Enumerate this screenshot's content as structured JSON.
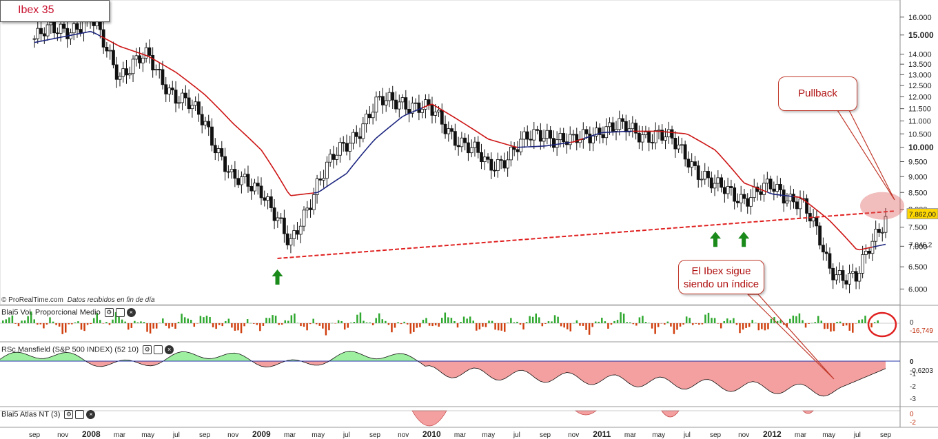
{
  "title": "Ibex 35",
  "copyright": {
    "brand": "© ProRealTime.com",
    "note": "Datos recibidos en fin de día"
  },
  "callouts": {
    "pullback": "Pullback",
    "note_line1": "El Ibex sigue",
    "note_line2": "siendo un índice"
  },
  "colors": {
    "ma_red": "#cc1111",
    "ma_blue": "#1a237e",
    "trendline": "#e02020",
    "arrow": "#1a8a1a",
    "vol_pos": "#2fa82f",
    "vol_neg": "#d04010",
    "rsc_pos": "#9ef0a0",
    "rsc_neg": "#f4a0a0",
    "price_marker": "#ffd700"
  },
  "price_axis": {
    "ticks": [
      "16.000",
      "15.000",
      "14.000",
      "13.500",
      "13.000",
      "12.500",
      "12.000",
      "11.500",
      "11.000",
      "10.500",
      "10.000",
      "9.500",
      "9.000",
      "8.500",
      "8.000",
      "7.500",
      "7.000",
      "6.500",
      "6.000"
    ],
    "last_price": "7.862,00",
    "ma_value": "7.046,2"
  },
  "x_axis": {
    "labels": [
      "sep",
      "nov",
      "2008",
      "mar",
      "may",
      "jul",
      "sep",
      "nov",
      "2009",
      "mar",
      "may",
      "jul",
      "sep",
      "nov",
      "2010",
      "mar",
      "may",
      "jul",
      "sep",
      "nov",
      "2011",
      "mar",
      "may",
      "jul",
      "sep",
      "nov",
      "2012",
      "mar",
      "may",
      "jul",
      "sep"
    ],
    "bold_labels": [
      "2008",
      "2009",
      "2010",
      "2011",
      "2012"
    ]
  },
  "panels": {
    "volume": {
      "label": "Blai5 Vol. Proporcional Medio",
      "zero": "0",
      "value": "-16,749"
    },
    "rsc": {
      "label": "RSc Mansfield (S&P 500 INDEX) (52 10)",
      "ticks": [
        "0",
        "-1",
        "-2",
        "-3"
      ],
      "value": "-0,6203"
    },
    "atlas": {
      "label": "Blai5 Atlas NT (3)",
      "ticks": [
        "0",
        "-2"
      ]
    }
  },
  "chart_data": {
    "type": "line",
    "title": "Ibex 35",
    "scale": "log",
    "ylim": [
      5700,
      16600
    ],
    "x": [
      "2007-09",
      "2007-11",
      "2008-01",
      "2008-03",
      "2008-05",
      "2008-07",
      "2008-09",
      "2008-11",
      "2009-01",
      "2009-03",
      "2009-05",
      "2009-07",
      "2009-09",
      "2009-11",
      "2010-01",
      "2010-03",
      "2010-05",
      "2010-07",
      "2010-09",
      "2010-11",
      "2011-01",
      "2011-03",
      "2011-05",
      "2011-07",
      "2011-09",
      "2011-11",
      "2012-01",
      "2012-03",
      "2012-05",
      "2012-07",
      "2012-09"
    ],
    "series": [
      {
        "values": [
          14800,
          15400,
          15700,
          13100,
          13800,
          12000,
          11000,
          8800,
          8700,
          6900,
          8900,
          10100,
          11600,
          11900,
          11300,
          10300,
          9300,
          10000,
          10600,
          10100,
          10800,
          10600,
          10500,
          9700,
          8600,
          8400,
          8600,
          8300,
          6500,
          6200,
          7860
        ]
      },
      {
        "values": [
          14600,
          14900,
          15200,
          14400,
          13900,
          13100,
          12100,
          10900,
          9900,
          8400,
          8500,
          9100,
          10300,
          11200,
          11700,
          11000,
          10300,
          10000,
          10050,
          10200,
          10550,
          10600,
          10600,
          10500,
          9900,
          8800,
          8450,
          8350,
          7700,
          6900,
          7050
        ]
      }
    ],
    "annotations": [
      "Pullback",
      "El Ibex sigue siendo un índice"
    ],
    "trendline": {
      "from": {
        "x": "2009-03",
        "y": 6700
      },
      "to": {
        "x": "2012-09",
        "y": 7950
      }
    },
    "arrows": [
      "2009-03",
      "2011-09",
      "2011-11"
    ]
  }
}
